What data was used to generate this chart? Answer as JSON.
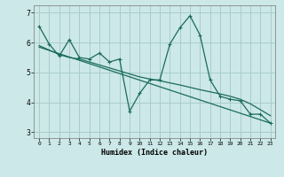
{
  "xlabel": "Humidex (Indice chaleur)",
  "bg_color": "#cce8e8",
  "grid_color": "#aacccc",
  "line_color": "#1a6b5a",
  "xlim": [
    -0.5,
    23.5
  ],
  "ylim": [
    2.8,
    7.25
  ],
  "xticks": [
    0,
    1,
    2,
    3,
    4,
    5,
    6,
    7,
    8,
    9,
    10,
    11,
    12,
    13,
    14,
    15,
    16,
    17,
    18,
    19,
    20,
    21,
    22,
    23
  ],
  "yticks": [
    3,
    4,
    5,
    6,
    7
  ],
  "series1_x": [
    0,
    1,
    2,
    3,
    4,
    5,
    6,
    7,
    8,
    9,
    10,
    11,
    12,
    13,
    14,
    15,
    16,
    17,
    18,
    19,
    20,
    21,
    22,
    23
  ],
  "series1_y": [
    6.55,
    5.95,
    5.55,
    6.1,
    5.5,
    5.45,
    5.65,
    5.35,
    5.45,
    3.7,
    4.3,
    4.75,
    4.75,
    5.95,
    6.5,
    6.9,
    6.25,
    4.75,
    4.2,
    4.1,
    4.05,
    3.6,
    3.6,
    3.3
  ],
  "series2_x": [
    0,
    23
  ],
  "series2_y": [
    5.85,
    3.3
  ],
  "series3_x": [
    0,
    1,
    2,
    3,
    4,
    5,
    6,
    7,
    8,
    9,
    10,
    11,
    12,
    13,
    14,
    15,
    16,
    17,
    18,
    19,
    20,
    21,
    22,
    23
  ],
  "series3_y": [
    5.9,
    5.75,
    5.6,
    5.5,
    5.45,
    5.35,
    5.25,
    5.15,
    5.05,
    4.95,
    4.85,
    4.78,
    4.72,
    4.65,
    4.58,
    4.5,
    4.42,
    4.35,
    4.28,
    4.2,
    4.1,
    3.95,
    3.75,
    3.55
  ]
}
